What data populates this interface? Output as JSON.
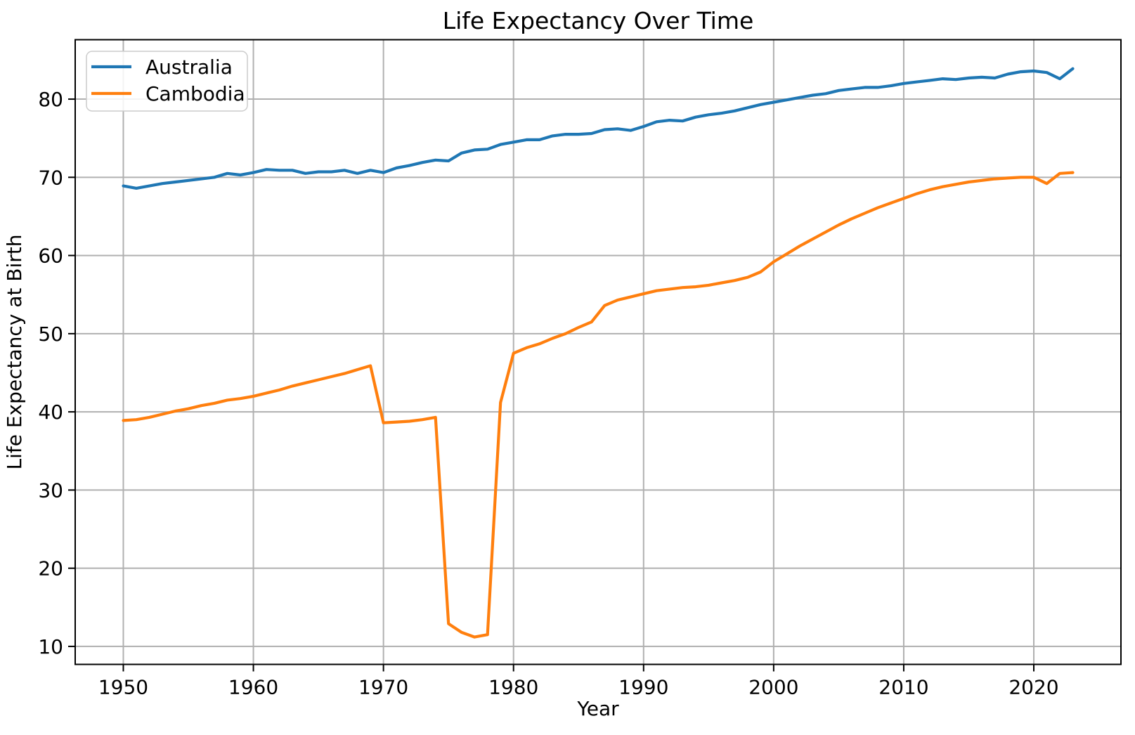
{
  "chart_data": {
    "type": "line",
    "title": "Life Expectancy Over Time",
    "xlabel": "Year",
    "ylabel": "Life Expectancy at Birth",
    "grid": true,
    "legend_position": "upper left",
    "x_ticks": [
      1950,
      1960,
      1970,
      1980,
      1990,
      2000,
      2010,
      2020
    ],
    "y_ticks": [
      10,
      20,
      30,
      40,
      50,
      60,
      70,
      80
    ],
    "xlim": [
      1946.3,
      2026.7
    ],
    "ylim": [
      7.7,
      87.6
    ],
    "grid_color": "#b0b0b0",
    "years": [
      1950,
      1951,
      1952,
      1953,
      1954,
      1955,
      1956,
      1957,
      1958,
      1959,
      1960,
      1961,
      1962,
      1963,
      1964,
      1965,
      1966,
      1967,
      1968,
      1969,
      1970,
      1971,
      1972,
      1973,
      1974,
      1975,
      1976,
      1977,
      1978,
      1979,
      1980,
      1981,
      1982,
      1983,
      1984,
      1985,
      1986,
      1987,
      1988,
      1989,
      1990,
      1991,
      1992,
      1993,
      1994,
      1995,
      1996,
      1997,
      1998,
      1999,
      2000,
      2001,
      2002,
      2003,
      2004,
      2005,
      2006,
      2007,
      2008,
      2009,
      2010,
      2011,
      2012,
      2013,
      2014,
      2015,
      2016,
      2017,
      2018,
      2019,
      2020,
      2021,
      2022,
      2023
    ],
    "series": [
      {
        "name": "Australia",
        "color": "#1f77b4",
        "values": [
          68.9,
          68.6,
          68.9,
          69.2,
          69.4,
          69.6,
          69.8,
          70.0,
          70.5,
          70.3,
          70.6,
          71.0,
          70.9,
          70.9,
          70.5,
          70.7,
          70.7,
          70.9,
          70.5,
          70.9,
          70.6,
          71.2,
          71.5,
          71.9,
          72.2,
          72.1,
          73.1,
          73.5,
          73.6,
          74.2,
          74.5,
          74.8,
          74.8,
          75.3,
          75.5,
          75.5,
          75.6,
          76.1,
          76.2,
          76.0,
          76.5,
          77.1,
          77.3,
          77.2,
          77.7,
          78.0,
          78.2,
          78.5,
          78.9,
          79.3,
          79.6,
          79.9,
          80.2,
          80.5,
          80.7,
          81.1,
          81.3,
          81.5,
          81.5,
          81.7,
          82.0,
          82.2,
          82.4,
          82.6,
          82.5,
          82.7,
          82.8,
          82.7,
          83.2,
          83.5,
          83.6,
          83.4,
          82.6,
          83.9
        ]
      },
      {
        "name": "Cambodia",
        "color": "#ff7f0e",
        "values": [
          38.9,
          39.0,
          39.3,
          39.7,
          40.1,
          40.4,
          40.8,
          41.1,
          41.5,
          41.7,
          42.0,
          42.4,
          42.8,
          43.3,
          43.7,
          44.1,
          44.5,
          44.9,
          45.4,
          45.9,
          38.6,
          38.7,
          38.8,
          39.0,
          39.3,
          12.9,
          11.8,
          11.2,
          11.5,
          41.2,
          47.5,
          48.2,
          48.7,
          49.4,
          50.0,
          50.8,
          51.5,
          53.6,
          54.3,
          54.7,
          55.1,
          55.5,
          55.7,
          55.9,
          56.0,
          56.2,
          56.5,
          56.8,
          57.2,
          57.9,
          59.2,
          60.2,
          61.2,
          62.1,
          63.0,
          63.9,
          64.7,
          65.4,
          66.1,
          66.7,
          67.3,
          67.9,
          68.4,
          68.8,
          69.1,
          69.4,
          69.6,
          69.8,
          69.9,
          70.0,
          70.0,
          69.2,
          70.5,
          70.6
        ]
      }
    ]
  }
}
